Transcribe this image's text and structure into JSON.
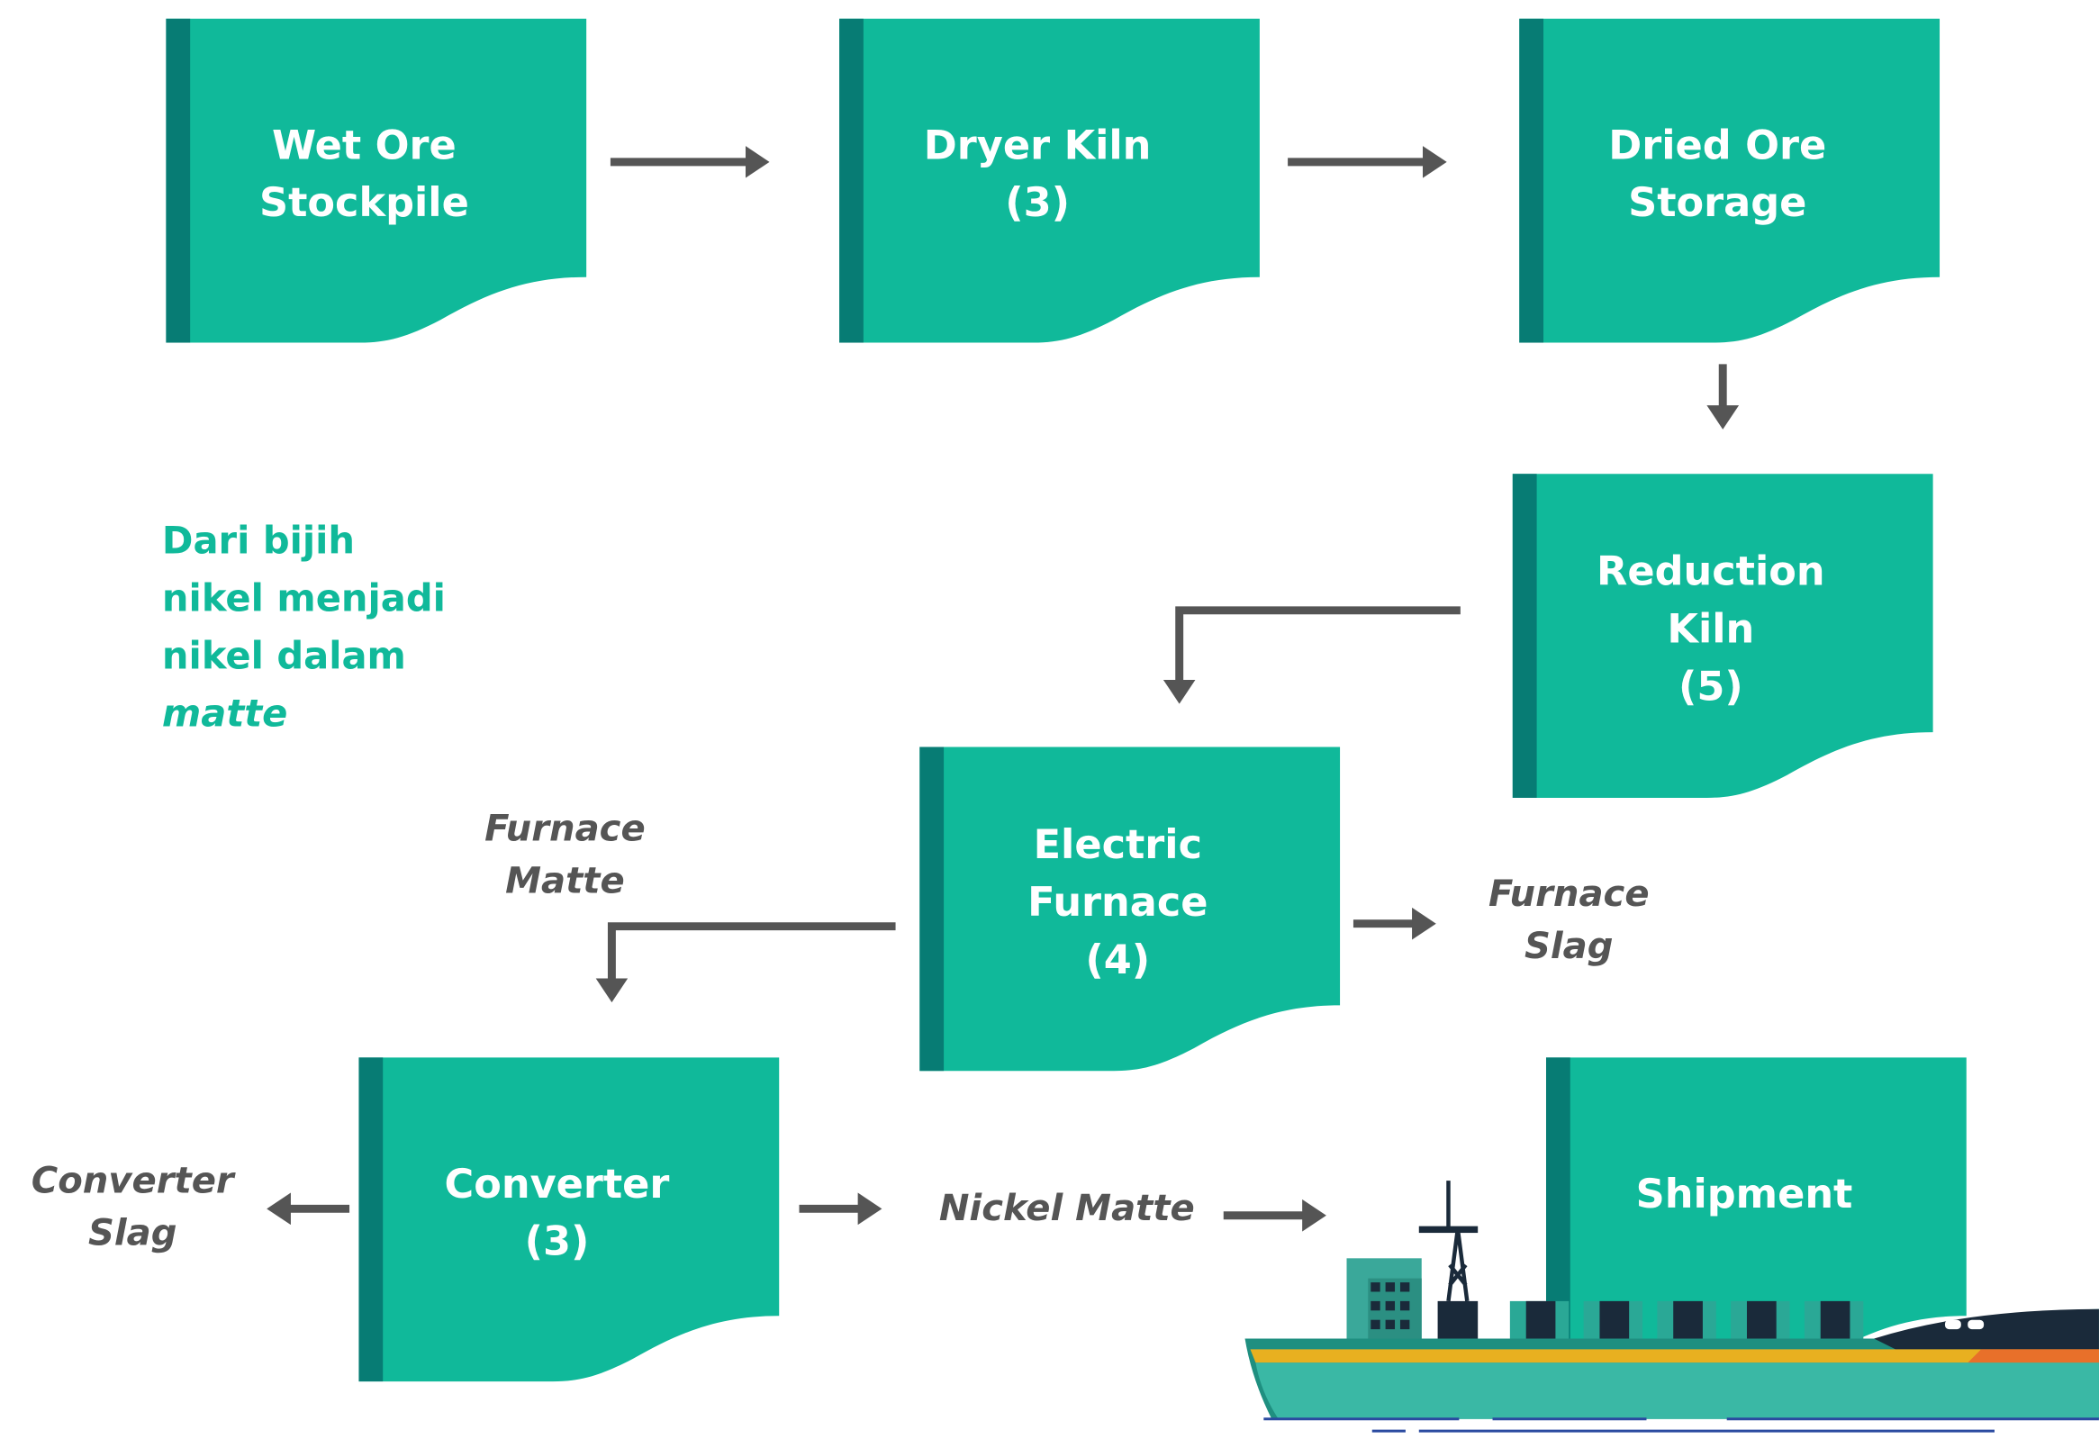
{
  "nodes": [
    {
      "lines": [
        "Wet Ore",
        "Stockpile"
      ]
    },
    {
      "lines": [
        "Dryer Kiln",
        "(3)"
      ]
    },
    {
      "lines": [
        "Dried Ore",
        "Storage"
      ]
    },
    {
      "lines": [
        "Reduction",
        "Kiln",
        "(5)"
      ]
    },
    {
      "lines": [
        "Electric",
        "Furnace",
        "(4)"
      ]
    },
    {
      "lines": [
        "Converter",
        "(3)"
      ]
    },
    {
      "lines": [
        "Shipment"
      ]
    }
  ],
  "outputs": [
    {
      "lines": [
        "Furnace",
        "Matte"
      ]
    },
    {
      "lines": [
        "Furnace",
        "Slag"
      ]
    },
    {
      "lines": [
        "Converter",
        "Slag"
      ]
    },
    {
      "lines": [
        "Nickel Matte"
      ]
    }
  ],
  "note": {
    "lines": [
      "Dari bijih",
      "nikel menjadi",
      "nikel dalam",
      "matte"
    ]
  }
}
